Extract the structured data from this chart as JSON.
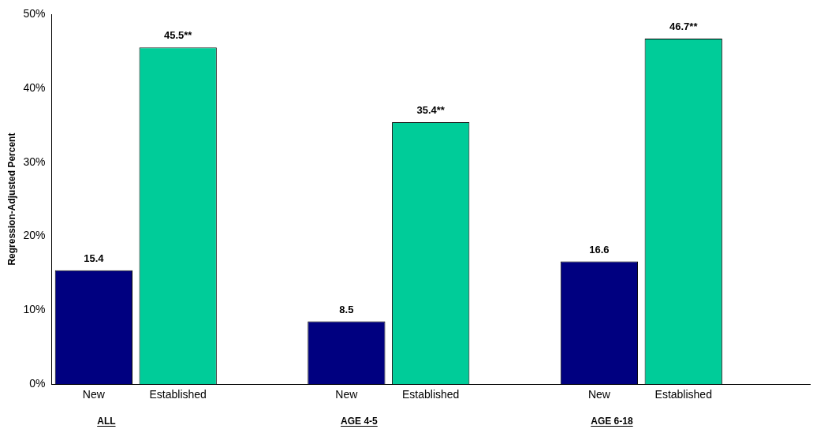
{
  "chart_data": {
    "type": "bar",
    "ylabel": "Regression-Adjusted Percent",
    "categories": [
      "New",
      "Established",
      null,
      "New",
      "Established",
      null,
      "New",
      "Established",
      null
    ],
    "values": [
      15.4,
      45.5,
      null,
      8.5,
      35.4,
      null,
      16.6,
      46.7,
      null
    ],
    "value_labels": [
      "15.4",
      "45.5**",
      null,
      "8.5",
      "35.4**",
      null,
      "16.6",
      "46.7**",
      null
    ],
    "colors": [
      "#000080",
      "#00cc99",
      null,
      "#000080",
      "#00cc99",
      null,
      "#000080",
      "#00cc99",
      null
    ],
    "ylim": [
      0,
      50
    ],
    "yticks": [
      {
        "value": 0,
        "label": "0%"
      },
      {
        "value": 10,
        "label": "10%"
      },
      {
        "value": 20,
        "label": "20%"
      },
      {
        "value": 30,
        "label": "30%"
      },
      {
        "value": 40,
        "label": "40%"
      },
      {
        "value": 50,
        "label": "50%"
      }
    ],
    "annotations": [
      "ALL",
      "AGE 4-5",
      "AGE 6-18"
    ],
    "legend": false
  }
}
